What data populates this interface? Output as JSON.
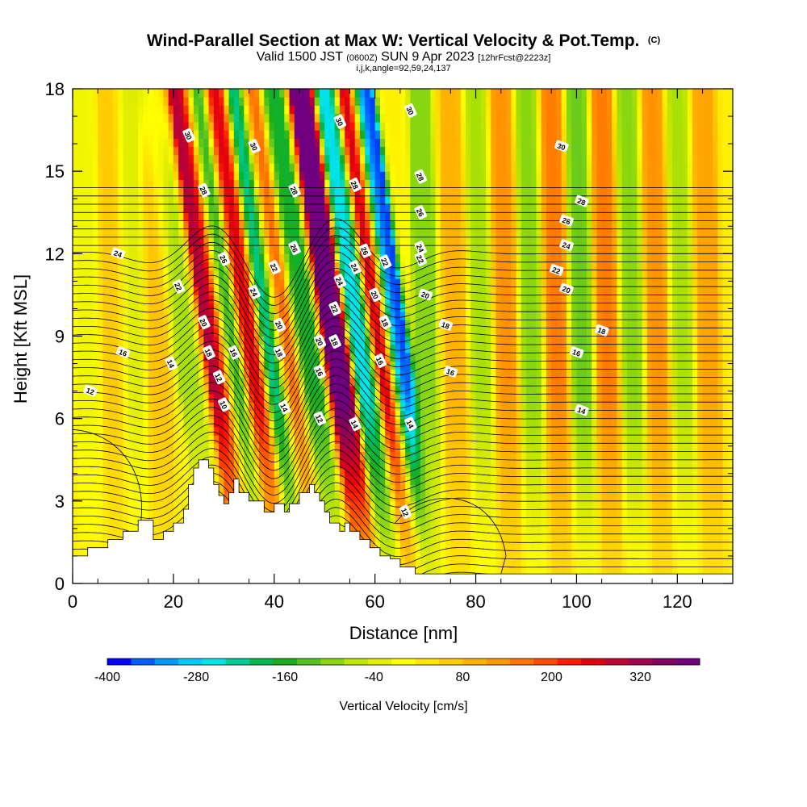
{
  "chart_data": {
    "type": "heatmap",
    "title": "Wind-Parallel Section at Max W: Vertical Velocity & Pot.Temp.",
    "title_mark": "(C)",
    "subtitle": {
      "prefix": "Valid 1500 JST ",
      "utc": "(0600Z)",
      "date": " SUN 9 Apr 2023 ",
      "forecast": "[12hrFcst@2223z]"
    },
    "indices_line": "i,j,k,angle=92,59,24,137",
    "xlabel": "Distance [nm]",
    "ylabel": "Height [Kft MSL]",
    "xlim": [
      0,
      131
    ],
    "ylim": [
      0,
      18
    ],
    "x_ticks": [
      0,
      20,
      40,
      60,
      80,
      100,
      120
    ],
    "y_ticks": [
      0,
      3,
      6,
      9,
      12,
      15,
      18
    ],
    "colorbar": {
      "title": "Vertical Velocity [cm/s]",
      "min": -400,
      "max": 400,
      "colors": [
        "#0000ff",
        "#005cff",
        "#0099ff",
        "#00ccff",
        "#00e6e6",
        "#00cc99",
        "#00b84d",
        "#1aad1a",
        "#55c222",
        "#88d610",
        "#bde600",
        "#e6ee00",
        "#ffff00",
        "#ffe600",
        "#ffcc00",
        "#ffb300",
        "#ff9900",
        "#ff7300",
        "#ff4d00",
        "#ff1a00",
        "#e00010",
        "#c00030",
        "#a00050",
        "#800060",
        "#700080"
      ],
      "tick_labels": [
        "-400",
        "-280",
        "-160",
        "-40",
        "80",
        "200",
        "320"
      ]
    },
    "vertical_velocity_bands": [
      {
        "x": 3,
        "w": -40
      },
      {
        "x": 8,
        "w": 50
      },
      {
        "x": 12,
        "w": -60
      },
      {
        "x": 17,
        "w": 60
      },
      {
        "x": 22,
        "w": -100
      },
      {
        "x": 28,
        "w": 300
      },
      {
        "x": 31,
        "w": -200
      },
      {
        "x": 35,
        "w": 260
      },
      {
        "x": 39,
        "w": -280
      },
      {
        "x": 42,
        "w": 180
      },
      {
        "x": 46,
        "w": -200
      },
      {
        "x": 52,
        "w": 400
      },
      {
        "x": 57,
        "w": -300
      },
      {
        "x": 61,
        "w": 300
      },
      {
        "x": 64,
        "w": -400
      },
      {
        "x": 70,
        "w": -120
      },
      {
        "x": 76,
        "w": 80
      },
      {
        "x": 81,
        "w": -100
      },
      {
        "x": 86,
        "w": 120
      },
      {
        "x": 91,
        "w": -120
      },
      {
        "x": 96,
        "w": 140
      },
      {
        "x": 101,
        "w": -140
      },
      {
        "x": 106,
        "w": 140
      },
      {
        "x": 111,
        "w": -120
      },
      {
        "x": 116,
        "w": 120
      },
      {
        "x": 121,
        "w": -100
      },
      {
        "x": 126,
        "w": 100
      }
    ],
    "terrain": [
      [
        0,
        1.0
      ],
      [
        3,
        1.0
      ],
      [
        3,
        1.3
      ],
      [
        7,
        1.3
      ],
      [
        7,
        1.6
      ],
      [
        10,
        1.6
      ],
      [
        10,
        1.9
      ],
      [
        13,
        1.9
      ],
      [
        13,
        2.3
      ],
      [
        16,
        2.3
      ],
      [
        16,
        1.6
      ],
      [
        18,
        1.6
      ],
      [
        18,
        1.9
      ],
      [
        20,
        1.9
      ],
      [
        20,
        2.2
      ],
      [
        22,
        2.2
      ],
      [
        22,
        2.7
      ],
      [
        23,
        2.7
      ],
      [
        23,
        3.6
      ],
      [
        24,
        3.6
      ],
      [
        24,
        4.2
      ],
      [
        25,
        4.2
      ],
      [
        25,
        4.5
      ],
      [
        27,
        4.5
      ],
      [
        27,
        4.2
      ],
      [
        28,
        4.2
      ],
      [
        28,
        3.6
      ],
      [
        29,
        3.6
      ],
      [
        29,
        3.2
      ],
      [
        30,
        3.2
      ],
      [
        30,
        2.9
      ],
      [
        31,
        2.9
      ],
      [
        31,
        3.3
      ],
      [
        32,
        3.3
      ],
      [
        32,
        3.8
      ],
      [
        33,
        3.8
      ],
      [
        33,
        3.3
      ],
      [
        35,
        3.3
      ],
      [
        35,
        3.0
      ],
      [
        38,
        3.0
      ],
      [
        38,
        2.6
      ],
      [
        40,
        2.6
      ],
      [
        40,
        2.9
      ],
      [
        42,
        2.9
      ],
      [
        42,
        2.6
      ],
      [
        43,
        2.6
      ],
      [
        43,
        2.9
      ],
      [
        45,
        2.9
      ],
      [
        45,
        3.3
      ],
      [
        47,
        3.3
      ],
      [
        47,
        3.6
      ],
      [
        48,
        3.6
      ],
      [
        48,
        3.3
      ],
      [
        49,
        3.3
      ],
      [
        49,
        3.0
      ],
      [
        50,
        3.0
      ],
      [
        50,
        2.6
      ],
      [
        51,
        2.6
      ],
      [
        51,
        2.2
      ],
      [
        53,
        2.2
      ],
      [
        53,
        1.9
      ],
      [
        54,
        1.9
      ],
      [
        54,
        2.2
      ],
      [
        55,
        2.2
      ],
      [
        55,
        1.9
      ],
      [
        57,
        1.9
      ],
      [
        57,
        1.6
      ],
      [
        59,
        1.6
      ],
      [
        59,
        1.3
      ],
      [
        61,
        1.3
      ],
      [
        61,
        1.0
      ],
      [
        63,
        1.0
      ],
      [
        63,
        0.9
      ],
      [
        65,
        0.9
      ],
      [
        65,
        0.6
      ],
      [
        68,
        0.6
      ],
      [
        68,
        0.35
      ],
      [
        131,
        0.35
      ]
    ],
    "theta_contours": {
      "levels": [
        10,
        12,
        14,
        16,
        18,
        20,
        22,
        24,
        26,
        28,
        30
      ],
      "labels": [
        {
          "x": 3.5,
          "y": 7.0,
          "t": "12"
        },
        {
          "x": 10,
          "y": 8.4,
          "t": "16"
        },
        {
          "x": 9,
          "y": 12.0,
          "t": "24"
        },
        {
          "x": 23,
          "y": 16.3,
          "t": "30"
        },
        {
          "x": 26,
          "y": 14.3,
          "t": "28"
        },
        {
          "x": 21,
          "y": 10.8,
          "t": "22"
        },
        {
          "x": 26,
          "y": 9.5,
          "t": "20"
        },
        {
          "x": 19.5,
          "y": 8.0,
          "t": "14"
        },
        {
          "x": 27,
          "y": 8.4,
          "t": "18"
        },
        {
          "x": 29,
          "y": 7.5,
          "t": "12"
        },
        {
          "x": 30,
          "y": 11.8,
          "t": "26"
        },
        {
          "x": 30,
          "y": 6.5,
          "t": "10"
        },
        {
          "x": 32,
          "y": 8.4,
          "t": "16"
        },
        {
          "x": 36,
          "y": 15.9,
          "t": "30"
        },
        {
          "x": 36,
          "y": 10.6,
          "t": "24"
        },
        {
          "x": 40,
          "y": 11.5,
          "t": "22"
        },
        {
          "x": 41,
          "y": 9.4,
          "t": "20"
        },
        {
          "x": 41,
          "y": 8.4,
          "t": "18"
        },
        {
          "x": 42,
          "y": 6.4,
          "t": "14"
        },
        {
          "x": 44,
          "y": 14.3,
          "t": "28"
        },
        {
          "x": 44,
          "y": 12.2,
          "t": "26"
        },
        {
          "x": 49,
          "y": 8.8,
          "t": "20"
        },
        {
          "x": 49,
          "y": 7.7,
          "t": "16"
        },
        {
          "x": 49,
          "y": 6.0,
          "t": "12"
        },
        {
          "x": 52,
          "y": 8.8,
          "t": "18"
        },
        {
          "x": 52,
          "y": 10.0,
          "t": "22"
        },
        {
          "x": 53,
          "y": 11.0,
          "t": "24"
        },
        {
          "x": 53,
          "y": 16.8,
          "t": "30"
        },
        {
          "x": 56,
          "y": 14.5,
          "t": "28"
        },
        {
          "x": 56,
          "y": 11.5,
          "t": "24"
        },
        {
          "x": 58,
          "y": 12.1,
          "t": "26"
        },
        {
          "x": 60,
          "y": 10.5,
          "t": "20"
        },
        {
          "x": 61,
          "y": 8.1,
          "t": "16"
        },
        {
          "x": 56,
          "y": 5.8,
          "t": "14"
        },
        {
          "x": 62,
          "y": 9.5,
          "t": "18"
        },
        {
          "x": 62,
          "y": 11.7,
          "t": "22"
        },
        {
          "x": 67,
          "y": 17.2,
          "t": "30"
        },
        {
          "x": 69,
          "y": 14.8,
          "t": "28"
        },
        {
          "x": 69,
          "y": 13.5,
          "t": "26"
        },
        {
          "x": 69,
          "y": 12.2,
          "t": "24"
        },
        {
          "x": 69,
          "y": 11.8,
          "t": "22"
        },
        {
          "x": 70,
          "y": 10.5,
          "t": "20"
        },
        {
          "x": 67,
          "y": 5.8,
          "t": "14"
        },
        {
          "x": 66,
          "y": 2.6,
          "t": "12"
        },
        {
          "x": 74,
          "y": 9.4,
          "t": "18"
        },
        {
          "x": 75,
          "y": 7.7,
          "t": "16"
        },
        {
          "x": 97,
          "y": 15.9,
          "t": "30"
        },
        {
          "x": 101,
          "y": 13.9,
          "t": "28"
        },
        {
          "x": 98,
          "y": 13.2,
          "t": "26"
        },
        {
          "x": 98,
          "y": 12.3,
          "t": "24"
        },
        {
          "x": 96,
          "y": 11.4,
          "t": "22"
        },
        {
          "x": 98,
          "y": 10.7,
          "t": "20"
        },
        {
          "x": 105,
          "y": 9.2,
          "t": "18"
        },
        {
          "x": 100,
          "y": 8.4,
          "t": "16"
        },
        {
          "x": 101,
          "y": 6.3,
          "t": "14"
        }
      ]
    }
  }
}
